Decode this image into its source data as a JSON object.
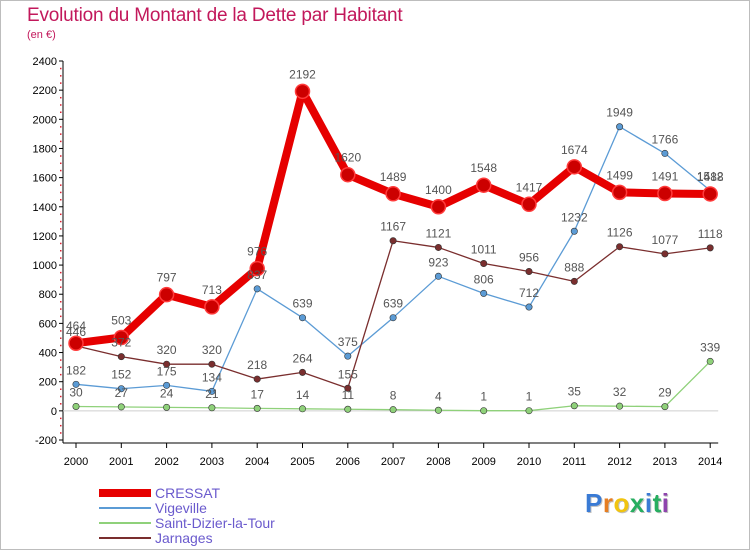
{
  "header": {
    "title": "Evolution du Montant de la Dette par Habitant",
    "subtitle": "(en €)"
  },
  "colors": {
    "title": "#c2185b",
    "axis": "#000000",
    "legend_text": "#6a5acd",
    "value_label": "#555555"
  },
  "logo": {
    "text": "Proxiti",
    "letter_colors": [
      "#3a7bd5",
      "#e67e22",
      "#f1c40f",
      "#27ae60",
      "#3a7bd5",
      "#27ae60",
      "#8e44ad"
    ]
  },
  "chart_data": {
    "type": "line",
    "title": "Evolution du Montant de la Dette par Habitant",
    "subtitle": "(en €)",
    "xlabel": "",
    "ylabel": "",
    "categories": [
      "2000",
      "2001",
      "2002",
      "2003",
      "2004",
      "2005",
      "2006",
      "2007",
      "2008",
      "2009",
      "2010",
      "2011",
      "2012",
      "2013",
      "2014"
    ],
    "ylim": [
      -200,
      2400
    ],
    "yticks": [
      -200,
      0,
      200,
      400,
      600,
      800,
      1000,
      1200,
      1400,
      1600,
      1800,
      2000,
      2200,
      2400
    ],
    "grid": false,
    "legend_position": "bottom-left",
    "series": [
      {
        "name": "CRESSAT",
        "color": "#e60000",
        "width": 8,
        "marker": 7,
        "values": [
          464,
          503,
          797,
          713,
          976,
          2192,
          1620,
          1489,
          1400,
          1548,
          1417,
          1674,
          1499,
          1491,
          1488
        ]
      },
      {
        "name": "Vigeville",
        "color": "#5b9bd5",
        "width": 1.3,
        "marker": 3.2,
        "values": [
          182,
          152,
          175,
          134,
          837,
          639,
          375,
          639,
          923,
          806,
          712,
          1232,
          1949,
          1766,
          1512
        ]
      },
      {
        "name": "Saint-Dizier-la-Tour",
        "color": "#8fd17a",
        "width": 1.3,
        "marker": 3.2,
        "values": [
          30,
          27,
          24,
          21,
          17,
          14,
          11,
          8,
          4,
          1,
          1,
          35,
          32,
          29,
          339
        ]
      },
      {
        "name": "Jarnages",
        "color": "#7a2e2e",
        "width": 1.3,
        "marker": 3.2,
        "values": [
          446,
          372,
          320,
          320,
          218,
          264,
          155,
          1167,
          1121,
          1011,
          956,
          888,
          1126,
          1077,
          1118
        ]
      }
    ]
  }
}
